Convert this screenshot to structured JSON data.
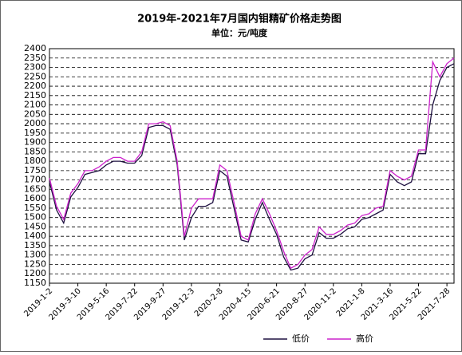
{
  "chart_data": {
    "type": "line",
    "title": "2019年-2021年7月国内钼精矿价格走势图",
    "subtitle": "单位：元/吨度",
    "categories": [
      "2019-1-2",
      null,
      null,
      null,
      "2019-3-10",
      null,
      null,
      null,
      "2019-5-16",
      null,
      null,
      null,
      "2019-7-22",
      null,
      null,
      null,
      "2019-9-27",
      null,
      null,
      null,
      "2019-12-3",
      null,
      null,
      null,
      "2020-2-8",
      null,
      null,
      null,
      "2020-4-15",
      null,
      null,
      null,
      "2020-6-21",
      null,
      null,
      null,
      "2020-8-27",
      null,
      null,
      null,
      "2020-11-2",
      null,
      null,
      null,
      "2021-1-8",
      null,
      null,
      null,
      "2021-3-16",
      null,
      null,
      null,
      "2021-5-22",
      null,
      null,
      null,
      "2021-7-28",
      null
    ],
    "series": [
      {
        "name": "低价",
        "color": "#1e1040",
        "values": [
          1690,
          1540,
          1470,
          1610,
          1660,
          1730,
          1740,
          1750,
          1780,
          1800,
          1800,
          1790,
          1790,
          1830,
          1980,
          1990,
          1990,
          1970,
          1780,
          1380,
          1500,
          1560,
          1560,
          1580,
          1750,
          1720,
          1550,
          1380,
          1370,
          1490,
          1580,
          1490,
          1410,
          1290,
          1220,
          1230,
          1280,
          1300,
          1420,
          1390,
          1390,
          1410,
          1440,
          1450,
          1490,
          1500,
          1520,
          1540,
          1730,
          1690,
          1670,
          1690,
          1840,
          1840,
          2100,
          2230,
          2300,
          2320
        ]
      },
      {
        "name": "高价",
        "color": "#cc22cc",
        "values": [
          1710,
          1560,
          1490,
          1630,
          1680,
          1750,
          1750,
          1770,
          1800,
          1820,
          1820,
          1800,
          1800,
          1850,
          2000,
          2000,
          2010,
          1990,
          1800,
          1400,
          1550,
          1600,
          1600,
          1600,
          1780,
          1750,
          1580,
          1400,
          1380,
          1520,
          1600,
          1520,
          1430,
          1320,
          1230,
          1250,
          1300,
          1330,
          1450,
          1410,
          1410,
          1430,
          1460,
          1470,
          1510,
          1520,
          1550,
          1560,
          1750,
          1720,
          1700,
          1720,
          1860,
          1860,
          2330,
          2250,
          2320,
          2350
        ]
      }
    ],
    "ylim": [
      1150,
      2400
    ],
    "yticks": [
      1150,
      1200,
      1250,
      1300,
      1350,
      1400,
      1450,
      1500,
      1550,
      1600,
      1650,
      1700,
      1750,
      1800,
      1850,
      1900,
      1950,
      2000,
      2050,
      2100,
      2150,
      2200,
      2250,
      2300,
      2350,
      2400
    ],
    "grid": true
  }
}
